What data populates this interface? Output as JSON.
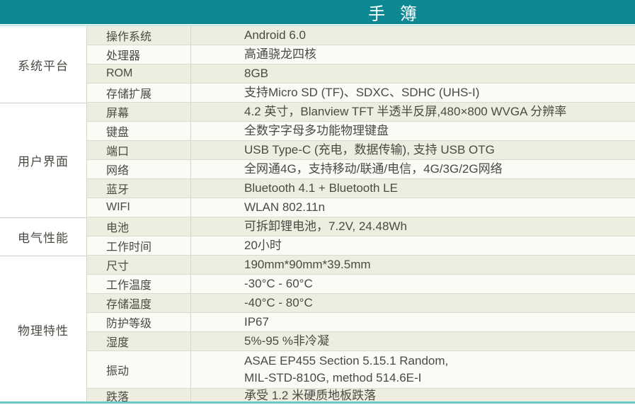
{
  "title": "手 簿",
  "theme": {
    "header_bg": "#0e8893",
    "accent_line": "#6cc8cb",
    "row_odd_bg": "#eeeee0",
    "row_even_bg": "#fbfbf5",
    "text_color": "#4a4a44"
  },
  "sections": [
    {
      "category": "系统平台",
      "rows": [
        {
          "label": "操作系统",
          "value": "Android 6.0"
        },
        {
          "label": "处理器",
          "value": "高通骁龙四核"
        },
        {
          "label": "ROM",
          "value": "8GB"
        },
        {
          "label": "存储扩展",
          "value": "支持Micro SD (TF)、SDXC、SDHC (UHS-I)"
        }
      ]
    },
    {
      "category": "用户界面",
      "rows": [
        {
          "label": "屏幕",
          "value": "4.2 英寸，Blanview TFT 半透半反屏,480×800 WVGA 分辨率"
        },
        {
          "label": "键盘",
          "value": "全数字字母多功能物理键盘"
        },
        {
          "label": "端口",
          "value": "USB Type-C (充电，数据传输), 支持 USB OTG"
        },
        {
          "label": "网络",
          "value": "全网通4G，支持移动/联通/电信，4G/3G/2G网络"
        },
        {
          "label": "蓝牙",
          "value": "Bluetooth 4.1 + Bluetooth LE"
        },
        {
          "label": "WIFI",
          "value": "WLAN 802.11n"
        }
      ]
    },
    {
      "category": "电气性能",
      "rows": [
        {
          "label": "电池",
          "value": "可拆卸锂电池，7.2V, 24.48Wh"
        },
        {
          "label": "工作时间",
          "value": "20小时"
        }
      ]
    },
    {
      "category": "物理特性",
      "rows": [
        {
          "label": "尺寸",
          "value": "190mm*90mm*39.5mm"
        },
        {
          "label": "工作温度",
          "value": "-30°C - 60°C"
        },
        {
          "label": "存储温度",
          "value": "-40°C - 80°C"
        },
        {
          "label": "防护等级",
          "value": "IP67"
        },
        {
          "label": "湿度",
          "value": "5%-95 %非冷凝"
        },
        {
          "label": "振动",
          "value": "ASAE EP455 Section 5.15.1 Random,\nMIL-STD-810G, method 514.6E-I"
        },
        {
          "label": "跌落",
          "value": "承受 1.2 米硬质地板跌落"
        }
      ]
    }
  ]
}
